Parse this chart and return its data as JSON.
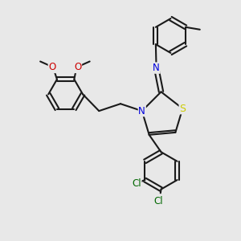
{
  "background_color": "#e8e8e8",
  "bond_color": "#1a1a1a",
  "bond_lw": 1.5,
  "N_color": "#0000dd",
  "S_color": "#cccc00",
  "O_color": "#cc0000",
  "Cl_color": "#006600",
  "font_size": 8.5,
  "figsize": [
    3.0,
    3.0
  ],
  "dpi": 100,
  "xlim": [
    0,
    10
  ],
  "ylim": [
    0,
    10
  ]
}
